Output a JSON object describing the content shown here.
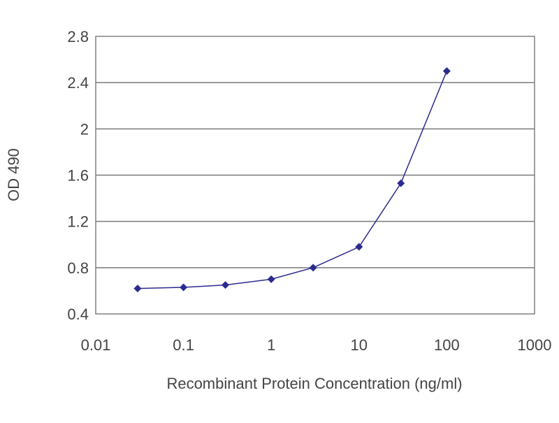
{
  "chart_data": {
    "type": "line",
    "title": "",
    "xlabel": "Recombinant Protein Concentration (ng/ml)",
    "ylabel": "OD 490",
    "x_scale": "log",
    "xlim": [
      0.01,
      1000
    ],
    "ylim": [
      0.4,
      2.8
    ],
    "x_ticks": [
      0.01,
      0.1,
      1,
      10,
      100,
      1000
    ],
    "x_tick_labels": [
      "0.01",
      "0.1",
      "1",
      "10",
      "100",
      "1000"
    ],
    "y_ticks": [
      0.4,
      0.8,
      1.2,
      1.6,
      2,
      2.4,
      2.8
    ],
    "y_tick_labels": [
      "0.4",
      "0.8",
      "1.2",
      "1.6",
      "2",
      "2.4",
      "2.8"
    ],
    "grid": "horizontal",
    "legend": "none",
    "series": [
      {
        "x": [
          0.03,
          0.1,
          0.3,
          1,
          3,
          10,
          30,
          100
        ],
        "y": [
          0.62,
          0.63,
          0.65,
          0.7,
          0.8,
          0.98,
          1.53,
          2.5
        ],
        "color": "#2b2b8f",
        "marker": "diamond"
      }
    ]
  }
}
